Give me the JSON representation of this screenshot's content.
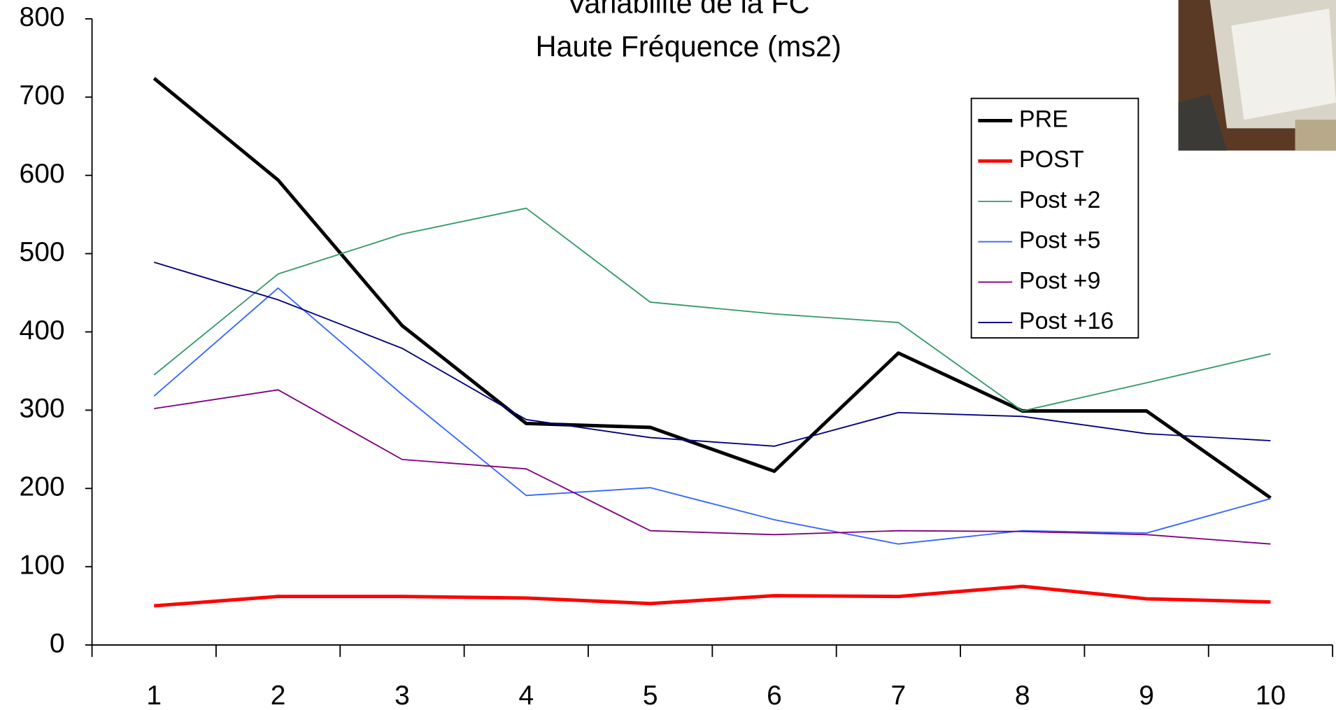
{
  "chart_data": {
    "type": "line",
    "title": "Variabilité de la FC",
    "subtitle": "Haute Fréquence (ms2)",
    "categories": [
      "1",
      "2",
      "3",
      "4",
      "5",
      "6",
      "7",
      "8",
      "9",
      "10"
    ],
    "ylim": [
      0,
      800
    ],
    "yticks": [
      0,
      100,
      200,
      300,
      400,
      500,
      600,
      700,
      800
    ],
    "grid": false,
    "legend": "upper-right",
    "series": [
      {
        "name": "PRE",
        "color": "#000000",
        "width": 4,
        "values": [
          724,
          594,
          408,
          283,
          278,
          222,
          373,
          299,
          299,
          188
        ]
      },
      {
        "name": "POST",
        "color": "#ff0000",
        "width": 4,
        "values": [
          50,
          62,
          62,
          60,
          53,
          63,
          62,
          75,
          59,
          55
        ]
      },
      {
        "name": "Post +2",
        "color": "#339966",
        "width": 1.5,
        "values": [
          345,
          474,
          525,
          558,
          438,
          423,
          412,
          299,
          335,
          372
        ]
      },
      {
        "name": "Post +5",
        "color": "#3366ff",
        "width": 1.5,
        "values": [
          318,
          456,
          320,
          191,
          201,
          160,
          129,
          146,
          143,
          187
        ]
      },
      {
        "name": "Post +9",
        "color": "#800080",
        "width": 1.5,
        "values": [
          302,
          326,
          237,
          225,
          146,
          141,
          146,
          145,
          141,
          129
        ]
      },
      {
        "name": "Post +16",
        "color": "#000080",
        "width": 1.5,
        "values": [
          489,
          441,
          379,
          288,
          265,
          254,
          297,
          292,
          270,
          261
        ]
      }
    ]
  }
}
